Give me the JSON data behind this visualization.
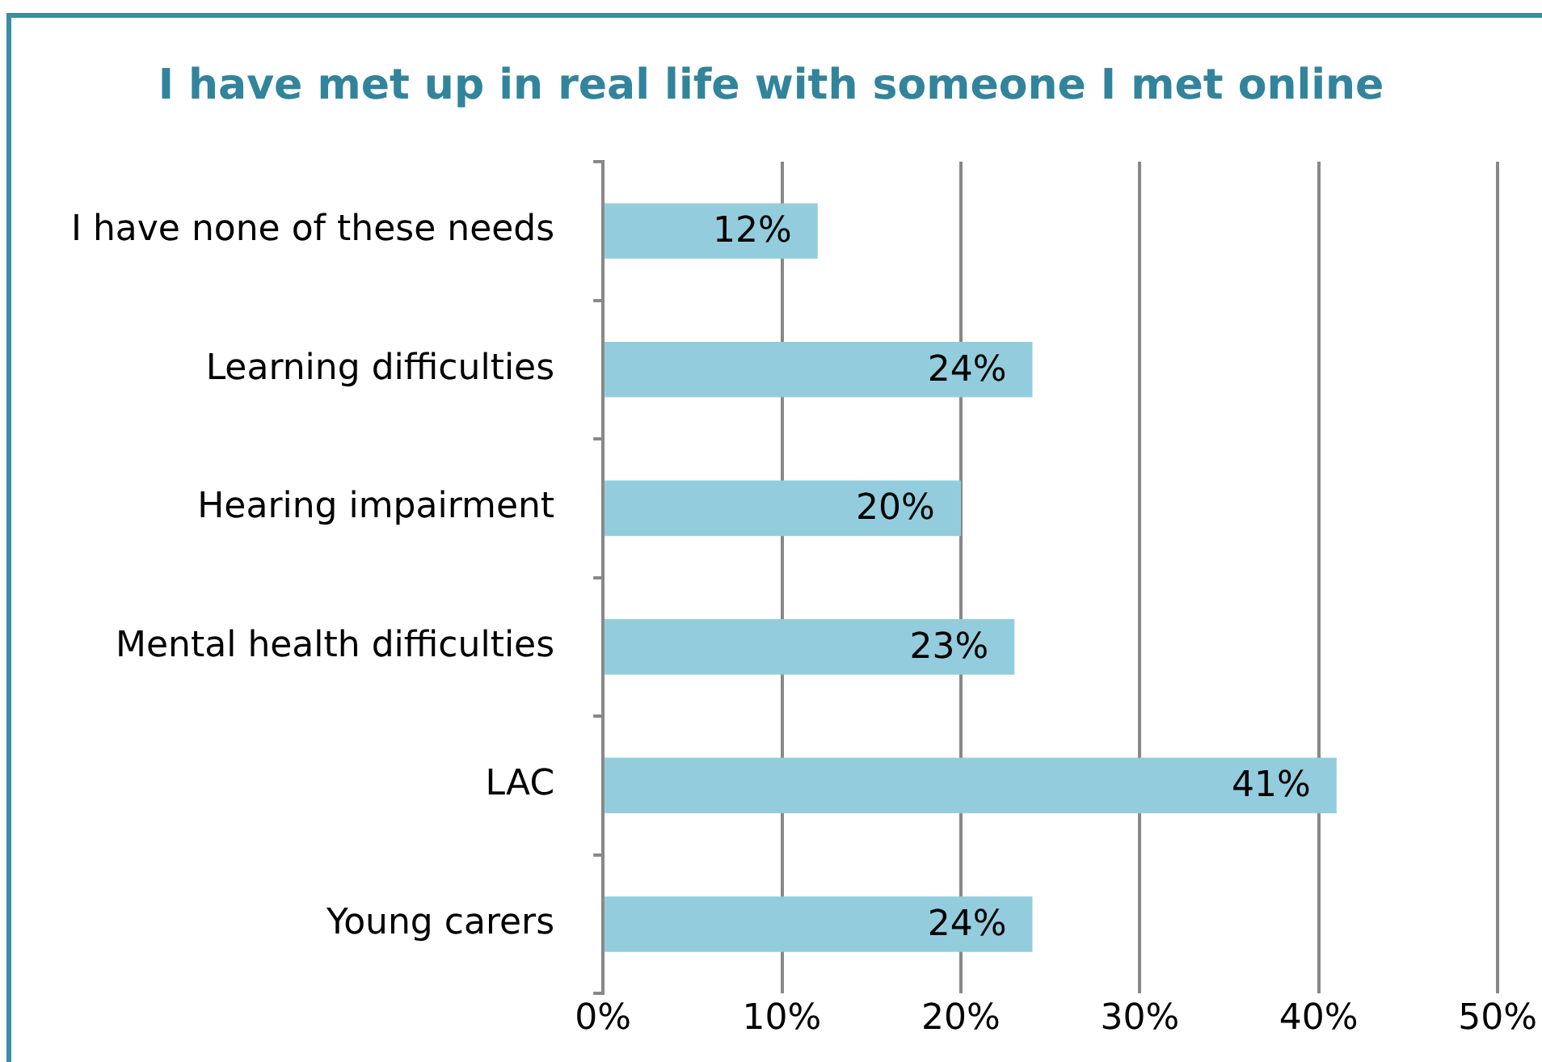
{
  "chart_data": {
    "type": "bar",
    "orientation": "horizontal",
    "title": "I have met up in real life with someone I met online",
    "categories": [
      "I have none of these needs",
      "Learning difficulties",
      "Hearing impairment",
      "Mental health difficulties",
      "LAC",
      "Young carers"
    ],
    "values": [
      12,
      24,
      20,
      23,
      41,
      24
    ],
    "color": "#93cddd",
    "xlim": [
      0,
      50
    ],
    "xticks": [
      {
        "value": 0,
        "label": "0%"
      },
      {
        "value": 10,
        "label": "10%"
      },
      {
        "value": 20,
        "label": "20%"
      },
      {
        "value": 30,
        "label": "30%"
      },
      {
        "value": 40,
        "label": "40%"
      },
      {
        "value": 50,
        "label": "50%"
      }
    ],
    "value_labels": [
      "12%",
      "24%",
      "20%",
      "23%",
      "41%",
      "24%"
    ],
    "grid": "x",
    "legend": false
  }
}
